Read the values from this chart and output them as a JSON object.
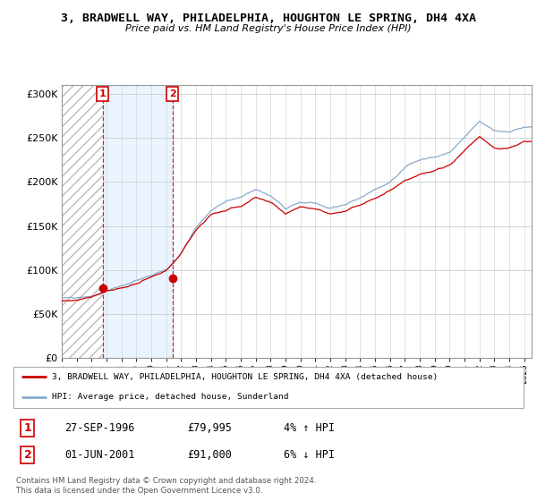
{
  "title": "3, BRADWELL WAY, PHILADELPHIA, HOUGHTON LE SPRING, DH4 4XA",
  "subtitle": "Price paid vs. HM Land Registry's House Price Index (HPI)",
  "ylabel_ticks": [
    "£0",
    "£50K",
    "£100K",
    "£150K",
    "£200K",
    "£250K",
    "£300K"
  ],
  "ytick_vals": [
    0,
    50000,
    100000,
    150000,
    200000,
    250000,
    300000
  ],
  "ylim": [
    0,
    310000
  ],
  "red_line_color": "#cc0000",
  "blue_line_color": "#88aacc",
  "shade_color": "#ddeeff",
  "hatch_color": "#cccccc",
  "grid_color": "#cccccc",
  "transaction1": {
    "date": "27-SEP-1996",
    "price": 79995,
    "year": 1996.75,
    "pct": "4%",
    "dir": "↑"
  },
  "transaction2": {
    "date": "01-JUN-2001",
    "price": 91000,
    "year": 2001.42,
    "pct": "6%",
    "dir": "↓"
  },
  "legend1": "3, BRADWELL WAY, PHILADELPHIA, HOUGHTON LE SPRING, DH4 4XA (detached house)",
  "legend2": "HPI: Average price, detached house, Sunderland",
  "footer": "Contains HM Land Registry data © Crown copyright and database right 2024.\nThis data is licensed under the Open Government Licence v3.0.",
  "xstart": 1994.0,
  "xend": 2025.5
}
